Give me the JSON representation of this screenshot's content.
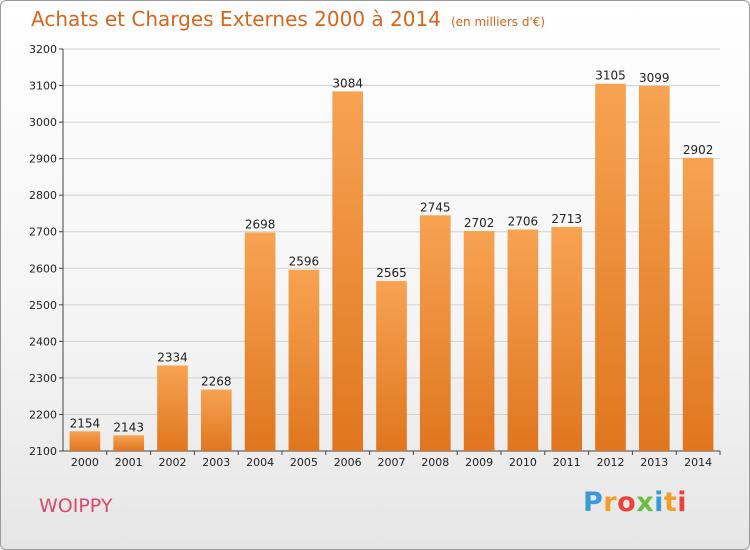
{
  "chart_data": {
    "type": "bar",
    "title": "Achats et Charges Externes 2000 à 2014",
    "subtitle": "(en milliers d'€)",
    "categories": [
      "2000",
      "2001",
      "2002",
      "2003",
      "2004",
      "2005",
      "2006",
      "2007",
      "2008",
      "2009",
      "2010",
      "2011",
      "2012",
      "2013",
      "2014"
    ],
    "values": [
      2154,
      2143,
      2334,
      2268,
      2698,
      2596,
      3084,
      2565,
      2745,
      2702,
      2706,
      2713,
      3105,
      3099,
      2902
    ],
    "ylim": [
      2100,
      3200
    ],
    "yticks": [
      2100,
      2200,
      2300,
      2400,
      2500,
      2600,
      2700,
      2800,
      2900,
      3000,
      3100,
      3200
    ],
    "grid": true,
    "bar_color_light": "#f7a352",
    "bar_color_dark": "#e0761f"
  },
  "commune": "WOIPPY",
  "logo": {
    "letters": [
      "P",
      "r",
      "o",
      "x",
      "i",
      "t",
      "i"
    ],
    "colors": [
      "#3a9ad9",
      "#f0a02a",
      "#e8443a",
      "#6abd45",
      "#3a9ad9",
      "#f0a02a",
      "#e8443a"
    ]
  }
}
